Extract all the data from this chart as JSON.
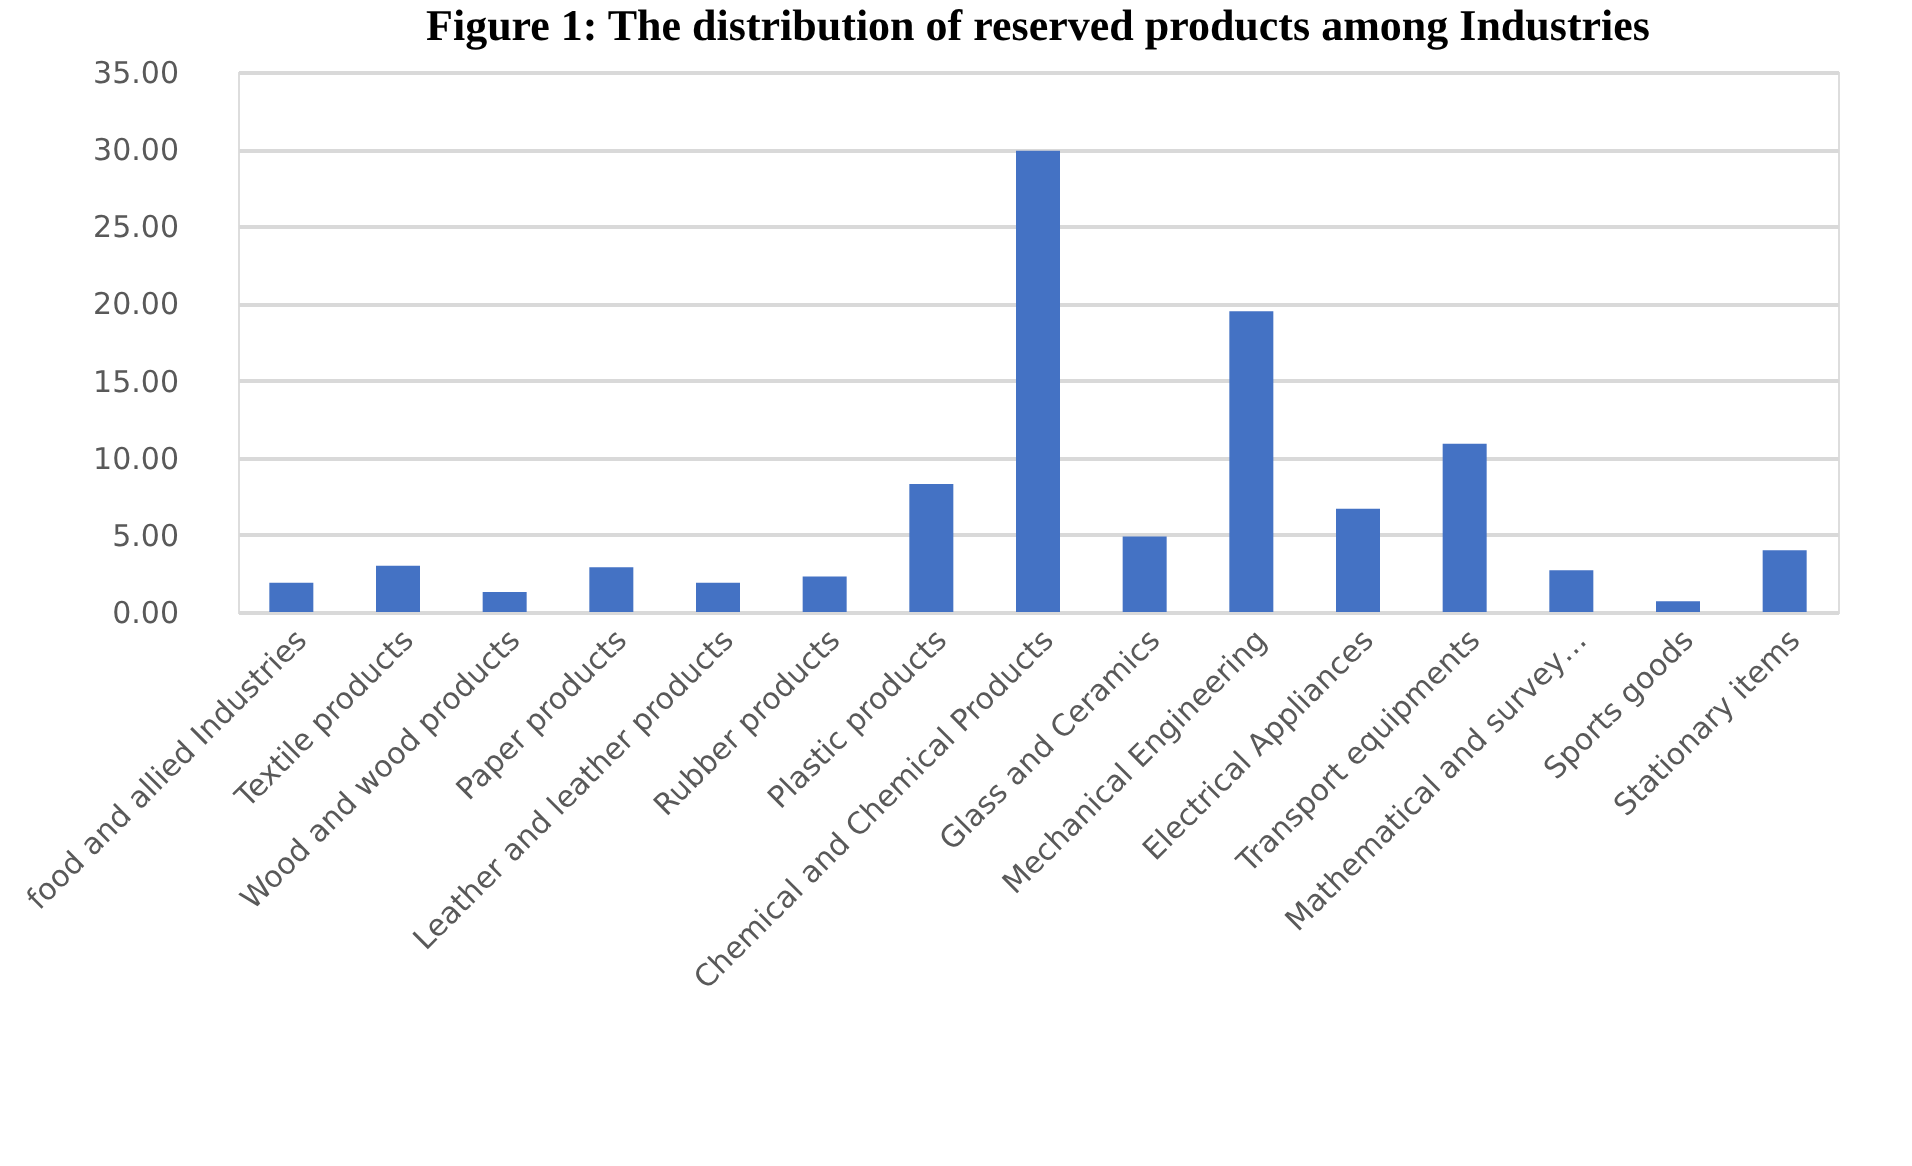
{
  "chart_data": {
    "type": "bar",
    "title": "Figure 1: The distribution of reserved products among Industries",
    "categories": [
      "food and allied Industries",
      "Textile products",
      "Wood and wood products",
      "Paper products",
      "Leather and leather products",
      "Rubber products",
      "Plastic products",
      "Chemical and Chemical Products",
      "Glass and Ceramics",
      "Mechanical Engineering",
      "Electrical Appliances",
      "Transport equipments",
      "Mathematical and survey…",
      "Sports goods",
      "Stationary items"
    ],
    "values": [
      1.9,
      3.0,
      1.3,
      2.9,
      1.9,
      2.3,
      8.3,
      29.9,
      4.9,
      19.5,
      6.7,
      10.9,
      2.7,
      0.7,
      4.0
    ],
    "color": "#4472c4",
    "ylim": [
      0,
      35
    ],
    "yticks": [
      {
        "value": 0,
        "label": "0.00"
      },
      {
        "value": 5,
        "label": "5.00"
      },
      {
        "value": 10,
        "label": "10.00"
      },
      {
        "value": 15,
        "label": "15.00"
      },
      {
        "value": 20,
        "label": "20.00"
      },
      {
        "value": 25,
        "label": "25.00"
      },
      {
        "value": 30,
        "label": "30.00"
      },
      {
        "value": 35,
        "label": "35.00"
      }
    ],
    "grid": "y"
  }
}
